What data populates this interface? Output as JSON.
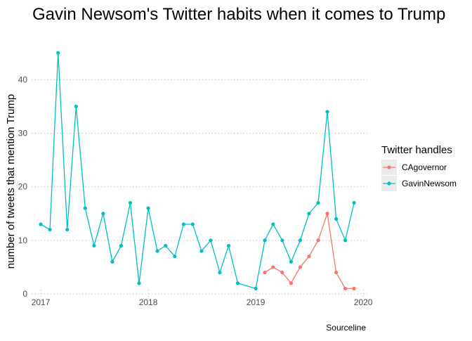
{
  "chart_data": {
    "type": "line",
    "title": "Gavin Newsom's Twitter habits when it comes to Trump",
    "xlabel": "",
    "ylabel": "number of tweets that mention Trump",
    "caption": "Sourceline",
    "xlim": [
      "2016-12-01",
      "2020-01-15"
    ],
    "ylim": [
      0,
      47
    ],
    "x_ticks": [
      {
        "value": "2017-01-01",
        "label": "2017"
      },
      {
        "value": "2018-01-01",
        "label": "2018"
      },
      {
        "value": "2019-01-01",
        "label": "2019"
      },
      {
        "value": "2020-01-01",
        "label": "2020"
      }
    ],
    "y_ticks": [
      0,
      10,
      20,
      30,
      40
    ],
    "grid": true,
    "grid_style": "dotted",
    "legend": {
      "title": "Twitter handles",
      "position": "right"
    },
    "series": [
      {
        "name": "CAgovernor",
        "color": "#F8766D",
        "points": [
          {
            "x": "2019-02-01",
            "y": 4
          },
          {
            "x": "2019-03-01",
            "y": 5
          },
          {
            "x": "2019-04-01",
            "y": 4
          },
          {
            "x": "2019-05-01",
            "y": 2
          },
          {
            "x": "2019-06-01",
            "y": 5
          },
          {
            "x": "2019-07-01",
            "y": 7
          },
          {
            "x": "2019-08-01",
            "y": 10
          },
          {
            "x": "2019-09-01",
            "y": 15
          },
          {
            "x": "2019-10-01",
            "y": 4
          },
          {
            "x": "2019-11-01",
            "y": 1
          },
          {
            "x": "2019-12-01",
            "y": 1
          }
        ]
      },
      {
        "name": "GavinNewsom",
        "color": "#00BFC4",
        "points": [
          {
            "x": "2017-01-01",
            "y": 13
          },
          {
            "x": "2017-02-01",
            "y": 12
          },
          {
            "x": "2017-03-01",
            "y": 45
          },
          {
            "x": "2017-04-01",
            "y": 12
          },
          {
            "x": "2017-05-01",
            "y": 35
          },
          {
            "x": "2017-06-01",
            "y": 16
          },
          {
            "x": "2017-07-01",
            "y": 9
          },
          {
            "x": "2017-08-01",
            "y": 15
          },
          {
            "x": "2017-09-01",
            "y": 6
          },
          {
            "x": "2017-10-01",
            "y": 9
          },
          {
            "x": "2017-11-01",
            "y": 17
          },
          {
            "x": "2017-12-01",
            "y": 2
          },
          {
            "x": "2018-01-01",
            "y": 16
          },
          {
            "x": "2018-02-01",
            "y": 8
          },
          {
            "x": "2018-03-01",
            "y": 9
          },
          {
            "x": "2018-04-01",
            "y": 7
          },
          {
            "x": "2018-05-01",
            "y": 13
          },
          {
            "x": "2018-06-01",
            "y": 13
          },
          {
            "x": "2018-07-01",
            "y": 8
          },
          {
            "x": "2018-08-01",
            "y": 10
          },
          {
            "x": "2018-09-01",
            "y": 4
          },
          {
            "x": "2018-10-01",
            "y": 9
          },
          {
            "x": "2018-11-01",
            "y": 2
          },
          {
            "x": "2019-01-01",
            "y": 1
          },
          {
            "x": "2019-02-01",
            "y": 10
          },
          {
            "x": "2019-03-01",
            "y": 13
          },
          {
            "x": "2019-04-01",
            "y": 10
          },
          {
            "x": "2019-05-01",
            "y": 6
          },
          {
            "x": "2019-06-01",
            "y": 10
          },
          {
            "x": "2019-07-01",
            "y": 15
          },
          {
            "x": "2019-08-01",
            "y": 17
          },
          {
            "x": "2019-09-01",
            "y": 34
          },
          {
            "x": "2019-10-01",
            "y": 14
          },
          {
            "x": "2019-11-01",
            "y": 10
          },
          {
            "x": "2019-12-01",
            "y": 17
          }
        ]
      }
    ]
  }
}
